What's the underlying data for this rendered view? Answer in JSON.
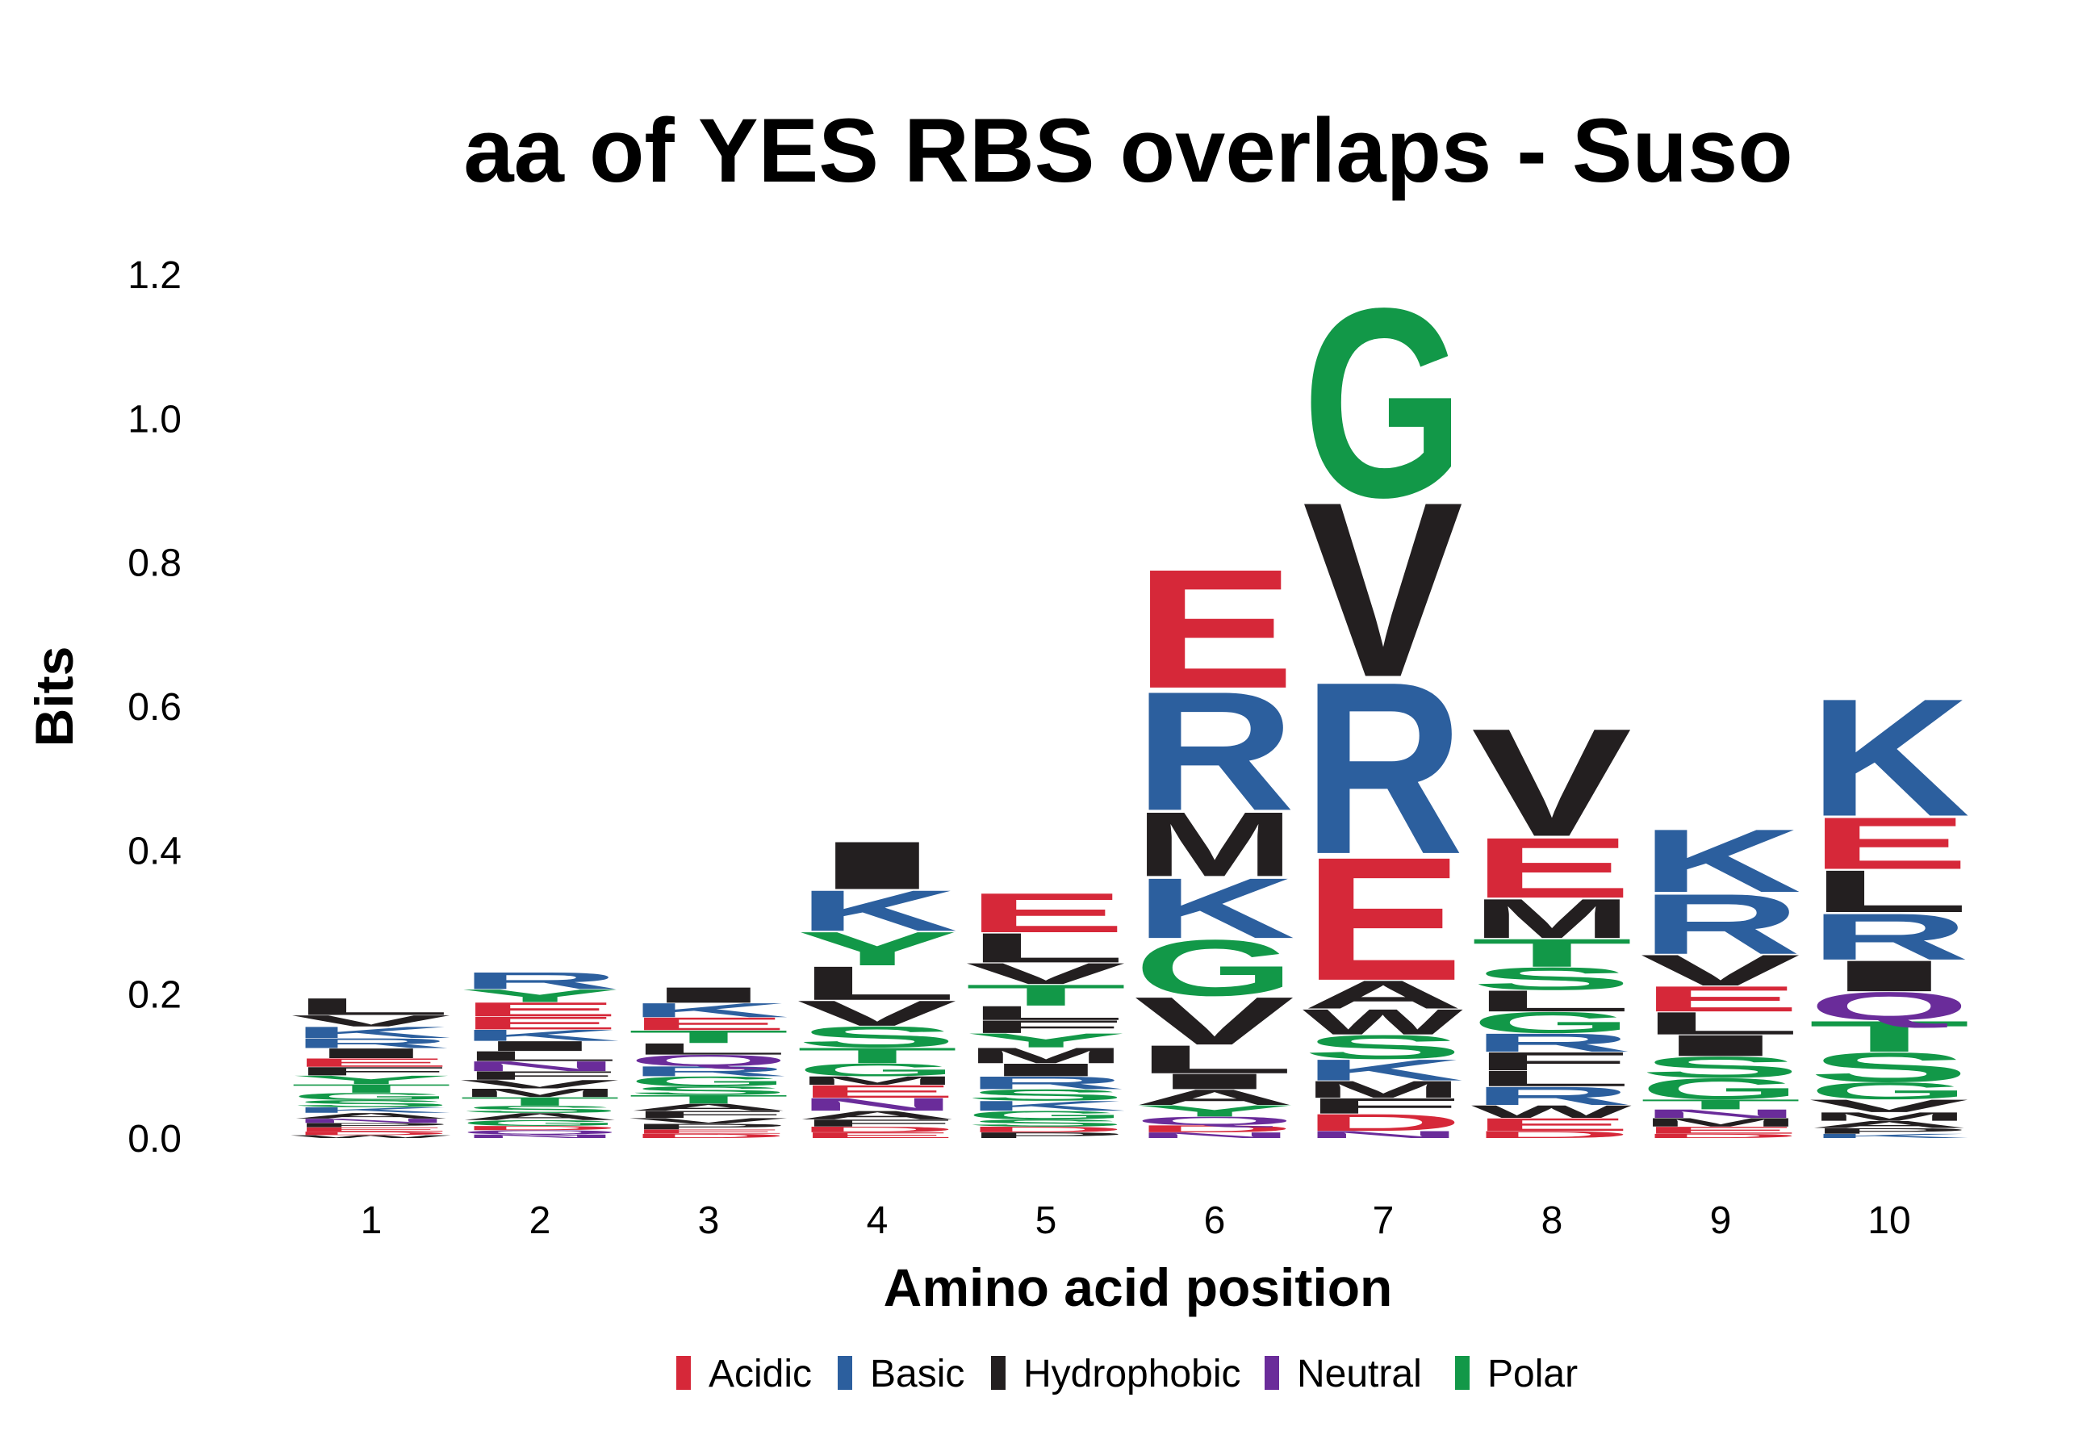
{
  "chart_data": {
    "type": "sequence-logo",
    "title": "aa of YES RBS overlaps - Suso",
    "xlabel": "Amino acid position",
    "ylabel": "Bits",
    "ylim": [
      0,
      1.2
    ],
    "yticks": [
      "0.0",
      "0.2",
      "0.4",
      "0.6",
      "0.8",
      "1.0",
      "1.2"
    ],
    "grid": false,
    "legend_position": "bottom",
    "colors": {
      "Acidic": "#d62839",
      "Basic": "#2c5f9e",
      "Hydrophobic": "#231f20",
      "Neutral": "#6a2c9a",
      "Polar": "#129848"
    },
    "legend": [
      "Acidic",
      "Basic",
      "Hydrophobic",
      "Neutral",
      "Polar"
    ],
    "residue_class": {
      "D": "Acidic",
      "E": "Acidic",
      "K": "Basic",
      "R": "Basic",
      "H": "Basic",
      "A": "Hydrophobic",
      "V": "Hydrophobic",
      "L": "Hydrophobic",
      "I": "Hydrophobic",
      "M": "Hydrophobic",
      "F": "Hydrophobic",
      "W": "Hydrophobic",
      "P": "Hydrophobic",
      "N": "Neutral",
      "Q": "Neutral",
      "G": "Polar",
      "S": "Polar",
      "T": "Polar",
      "Y": "Polar",
      "C": "Polar"
    },
    "positions": [
      {
        "x": "1",
        "stack": [
          [
            "W",
            0.004
          ],
          [
            "D",
            0.005
          ],
          [
            "E",
            0.006
          ],
          [
            "P",
            0.006
          ],
          [
            "N",
            0.006
          ],
          [
            "A",
            0.008
          ],
          [
            "K",
            0.008
          ],
          [
            "S",
            0.01
          ],
          [
            "G",
            0.01
          ],
          [
            "T",
            0.012
          ],
          [
            "Y",
            0.012
          ],
          [
            "F",
            0.012
          ],
          [
            "E",
            0.012
          ],
          [
            "I",
            0.014
          ],
          [
            "R",
            0.014
          ],
          [
            "K",
            0.016
          ],
          [
            "V",
            0.016
          ],
          [
            "L",
            0.024
          ]
        ]
      },
      {
        "x": "2",
        "stack": [
          [
            "N",
            0.005
          ],
          [
            "Q",
            0.006
          ],
          [
            "D",
            0.006
          ],
          [
            "G",
            0.008
          ],
          [
            "A",
            0.01
          ],
          [
            "S",
            0.01
          ],
          [
            "T",
            0.012
          ],
          [
            "M",
            0.012
          ],
          [
            "V",
            0.012
          ],
          [
            "F",
            0.012
          ],
          [
            "N",
            0.014
          ],
          [
            "L",
            0.014
          ],
          [
            "I",
            0.014
          ],
          [
            "K",
            0.016
          ],
          [
            "E",
            0.018
          ],
          [
            "E",
            0.02
          ],
          [
            "Y",
            0.018
          ],
          [
            "R",
            0.024
          ]
        ]
      },
      {
        "x": "3",
        "stack": [
          [
            "D",
            0.006
          ],
          [
            "E",
            0.006
          ],
          [
            "P",
            0.008
          ],
          [
            "V",
            0.008
          ],
          [
            "F",
            0.01
          ],
          [
            "A",
            0.01
          ],
          [
            "T",
            0.012
          ],
          [
            "S",
            0.012
          ],
          [
            "G",
            0.014
          ],
          [
            "R",
            0.014
          ],
          [
            "Q",
            0.016
          ],
          [
            "L",
            0.016
          ],
          [
            "T",
            0.018
          ],
          [
            "E",
            0.018
          ],
          [
            "K",
            0.02
          ],
          [
            "I",
            0.022
          ]
        ]
      },
      {
        "x": "4",
        "stack": [
          [
            "E",
            0.008
          ],
          [
            "D",
            0.008
          ],
          [
            "F",
            0.01
          ],
          [
            "A",
            0.012
          ],
          [
            "N",
            0.018
          ],
          [
            "E",
            0.018
          ],
          [
            "M",
            0.012
          ],
          [
            "G",
            0.018
          ],
          [
            "T",
            0.022
          ],
          [
            "S",
            0.03
          ],
          [
            "V",
            0.036
          ],
          [
            "L",
            0.048
          ],
          [
            "Y",
            0.048
          ],
          [
            "K",
            0.058
          ],
          [
            "I",
            0.068
          ]
        ]
      },
      {
        "x": "5",
        "stack": [
          [
            "P",
            0.008
          ],
          [
            "D",
            0.008
          ],
          [
            "S",
            0.01
          ],
          [
            "G",
            0.012
          ],
          [
            "K",
            0.014
          ],
          [
            "S",
            0.016
          ],
          [
            "R",
            0.018
          ],
          [
            "I",
            0.018
          ],
          [
            "M",
            0.022
          ],
          [
            "Y",
            0.02
          ],
          [
            "F",
            0.018
          ],
          [
            "L",
            0.02
          ],
          [
            "T",
            0.03
          ],
          [
            "V",
            0.03
          ],
          [
            "L",
            0.042
          ],
          [
            "E",
            0.056
          ]
        ]
      },
      {
        "x": "6",
        "stack": [
          [
            "N",
            0.008
          ],
          [
            "D",
            0.01
          ],
          [
            "Q",
            0.012
          ],
          [
            "Y",
            0.016
          ],
          [
            "A",
            0.022
          ],
          [
            "I",
            0.022
          ],
          [
            "L",
            0.04
          ],
          [
            "V",
            0.068
          ],
          [
            "G",
            0.08
          ],
          [
            "K",
            0.086
          ],
          [
            "M",
            0.092
          ],
          [
            "R",
            0.17
          ],
          [
            "E",
            0.17
          ]
        ]
      },
      {
        "x": "7",
        "stack": [
          [
            "N",
            0.01
          ],
          [
            "D",
            0.024
          ],
          [
            "F",
            0.022
          ],
          [
            "M",
            0.024
          ],
          [
            "K",
            0.03
          ],
          [
            "S",
            0.034
          ],
          [
            "W",
            0.036
          ],
          [
            "A",
            0.04
          ],
          [
            "E",
            0.176
          ],
          [
            "R",
            0.246
          ],
          [
            "V",
            0.25
          ],
          [
            "G",
            0.27
          ]
        ]
      },
      {
        "x": "8",
        "stack": [
          [
            "D",
            0.01
          ],
          [
            "E",
            0.018
          ],
          [
            "W",
            0.018
          ],
          [
            "R",
            0.026
          ],
          [
            "L",
            0.022
          ],
          [
            "F",
            0.026
          ],
          [
            "R",
            0.026
          ],
          [
            "G",
            0.03
          ],
          [
            "L",
            0.03
          ],
          [
            "S",
            0.032
          ],
          [
            "T",
            0.04
          ],
          [
            "M",
            0.056
          ],
          [
            "E",
            0.086
          ],
          [
            "V",
            0.154
          ]
        ]
      },
      {
        "x": "9",
        "stack": [
          [
            "D",
            0.006
          ],
          [
            "E",
            0.01
          ],
          [
            "M",
            0.012
          ],
          [
            "N",
            0.012
          ],
          [
            "T",
            0.014
          ],
          [
            "G",
            0.03
          ],
          [
            "S",
            0.03
          ],
          [
            "I",
            0.03
          ],
          [
            "L",
            0.032
          ],
          [
            "E",
            0.036
          ],
          [
            "V",
            0.044
          ],
          [
            "R",
            0.086
          ],
          [
            "K",
            0.09
          ]
        ]
      },
      {
        "x": "10",
        "stack": [
          [
            "K",
            0.006
          ],
          [
            "P",
            0.008
          ],
          [
            "A",
            0.01
          ],
          [
            "M",
            0.012
          ],
          [
            "V",
            0.018
          ],
          [
            "G",
            0.024
          ],
          [
            "S",
            0.042
          ],
          [
            "T",
            0.044
          ],
          [
            "Q",
            0.04
          ],
          [
            "I",
            0.044
          ],
          [
            "R",
            0.066
          ],
          [
            "L",
            0.06
          ],
          [
            "E",
            0.074
          ],
          [
            "K",
            0.168
          ]
        ]
      }
    ]
  }
}
